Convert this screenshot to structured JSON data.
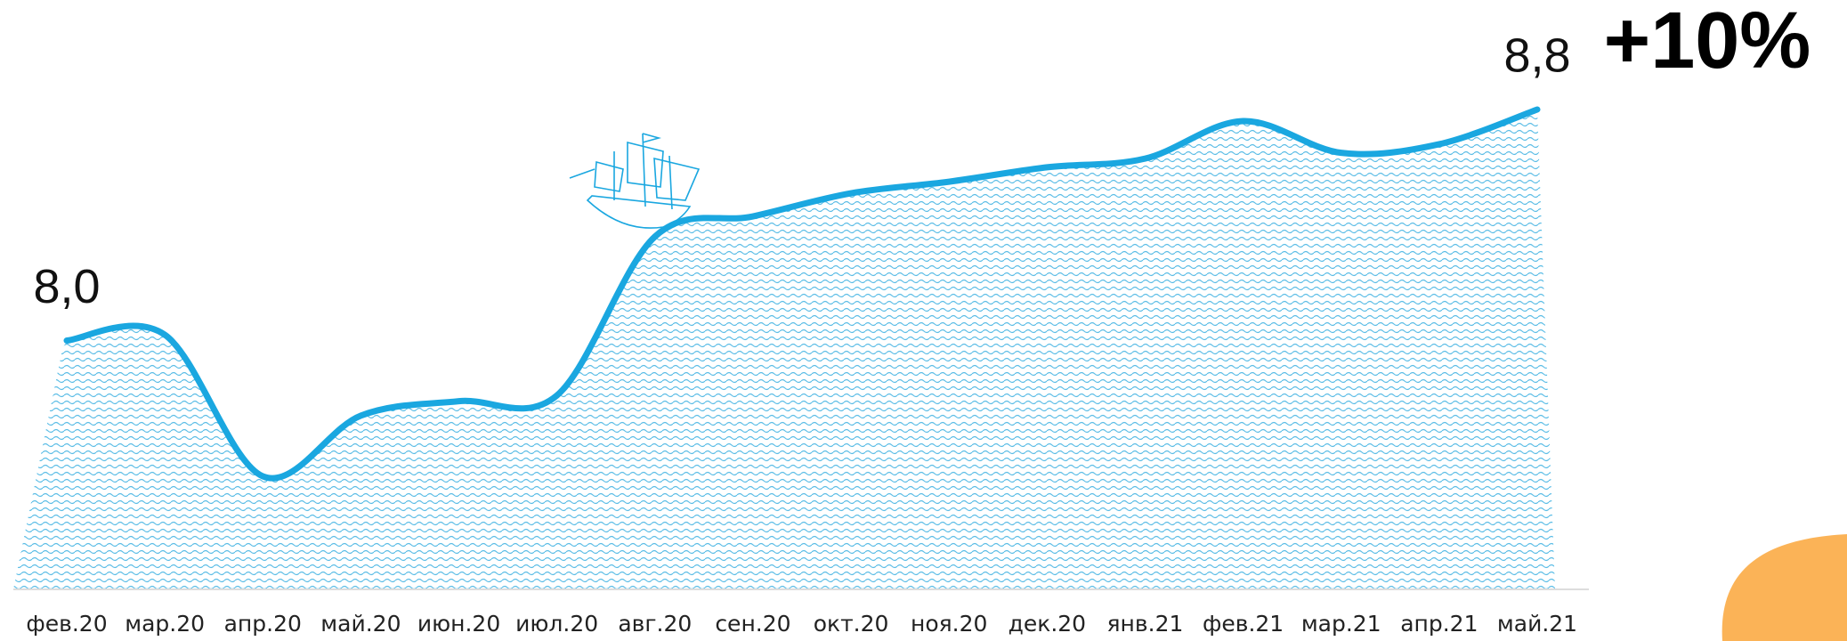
{
  "chart_data": {
    "type": "area",
    "annotation": "+10%",
    "categories": [
      "фев.20",
      "мар.20",
      "апр.20",
      "май.20",
      "июн.20",
      "июл.20",
      "авг.20",
      "сен.20",
      "окт.20",
      "ноя.20",
      "дек.20",
      "янв.21",
      "фев.21",
      "мар.21",
      "апр.21",
      "май.21"
    ],
    "values": [
      8.0,
      8.02,
      7.53,
      7.74,
      7.79,
      7.81,
      8.36,
      8.43,
      8.51,
      8.55,
      8.6,
      8.63,
      8.76,
      8.65,
      8.68,
      8.8
    ],
    "value_labels": [
      "8,0",
      null,
      null,
      null,
      null,
      null,
      null,
      null,
      null,
      null,
      null,
      null,
      null,
      null,
      null,
      "8,8"
    ],
    "color": "#1aa7e0"
  }
}
